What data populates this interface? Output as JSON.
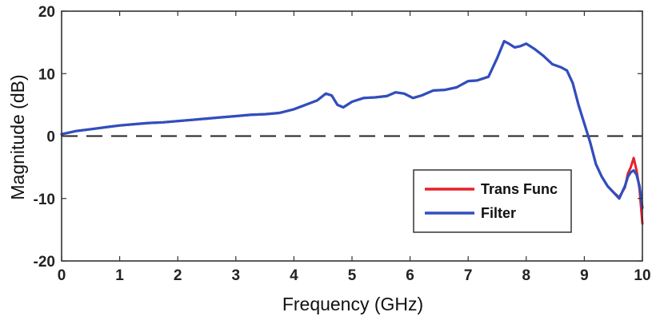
{
  "chart_data": {
    "type": "line",
    "xlabel": "Frequency (GHz)",
    "ylabel": "Magnitude (dB)",
    "xlim": [
      0,
      10
    ],
    "ylim": [
      -20,
      20
    ],
    "xticks": [
      "0",
      "1",
      "2",
      "3",
      "4",
      "5",
      "6",
      "7",
      "8",
      "9",
      "10"
    ],
    "yticks": [
      "20",
      "10",
      "0",
      "-10",
      "-20"
    ],
    "grid": false,
    "legend_position": "lower-right",
    "reference_line": {
      "y": 0,
      "style": "dashed"
    },
    "series": [
      {
        "name": "Trans Func",
        "color": "#e8202a",
        "x": [
          0,
          0.25,
          0.5,
          0.75,
          1,
          1.25,
          1.5,
          1.75,
          2,
          2.25,
          2.5,
          2.75,
          3,
          3.25,
          3.5,
          3.75,
          4,
          4.2,
          4.4,
          4.55,
          4.65,
          4.75,
          4.85,
          5,
          5.2,
          5.4,
          5.6,
          5.75,
          5.9,
          6.05,
          6.2,
          6.4,
          6.6,
          6.8,
          7,
          7.15,
          7.35,
          7.5,
          7.62,
          7.7,
          7.8,
          7.9,
          8,
          8.15,
          8.3,
          8.45,
          8.6,
          8.7,
          8.8,
          8.9,
          9,
          9.1,
          9.2,
          9.3,
          9.4,
          9.5,
          9.6,
          9.7,
          9.75,
          9.8,
          9.85,
          9.9,
          9.95,
          10
        ],
        "y": [
          0.3,
          0.8,
          1.1,
          1.4,
          1.7,
          1.9,
          2.1,
          2.2,
          2.4,
          2.6,
          2.8,
          3.0,
          3.2,
          3.4,
          3.5,
          3.7,
          4.3,
          5.0,
          5.7,
          6.8,
          6.5,
          5.0,
          4.6,
          5.5,
          6.1,
          6.2,
          6.4,
          7.0,
          6.8,
          6.1,
          6.5,
          7.3,
          7.4,
          7.8,
          8.8,
          8.9,
          9.5,
          12.5,
          15.2,
          14.8,
          14.2,
          14.4,
          14.8,
          13.9,
          12.8,
          11.5,
          11.0,
          10.5,
          8.5,
          5.0,
          2.0,
          -1.0,
          -4.5,
          -6.5,
          -8.0,
          -9.0,
          -9.8,
          -8.2,
          -6.0,
          -5.0,
          -3.5,
          -5.5,
          -8.5,
          -14.0
        ]
      },
      {
        "name": "Filter",
        "color": "#2f4fc0",
        "x": [
          0,
          0.25,
          0.5,
          0.75,
          1,
          1.25,
          1.5,
          1.75,
          2,
          2.25,
          2.5,
          2.75,
          3,
          3.25,
          3.5,
          3.75,
          4,
          4.2,
          4.4,
          4.55,
          4.65,
          4.75,
          4.85,
          5,
          5.2,
          5.4,
          5.6,
          5.75,
          5.9,
          6.05,
          6.2,
          6.4,
          6.6,
          6.8,
          7,
          7.15,
          7.35,
          7.5,
          7.62,
          7.7,
          7.8,
          7.9,
          8,
          8.15,
          8.3,
          8.45,
          8.6,
          8.7,
          8.8,
          8.9,
          9,
          9.1,
          9.2,
          9.3,
          9.4,
          9.5,
          9.6,
          9.7,
          9.75,
          9.8,
          9.85,
          9.9,
          9.95,
          10
        ],
        "y": [
          0.3,
          0.8,
          1.1,
          1.4,
          1.7,
          1.9,
          2.1,
          2.2,
          2.4,
          2.6,
          2.8,
          3.0,
          3.2,
          3.4,
          3.5,
          3.7,
          4.3,
          5.0,
          5.7,
          6.8,
          6.5,
          5.0,
          4.6,
          5.5,
          6.1,
          6.2,
          6.4,
          7.0,
          6.8,
          6.1,
          6.5,
          7.3,
          7.4,
          7.8,
          8.8,
          8.9,
          9.5,
          12.5,
          15.2,
          14.8,
          14.2,
          14.4,
          14.8,
          13.9,
          12.8,
          11.5,
          11.0,
          10.5,
          8.5,
          5.0,
          2.0,
          -1.0,
          -4.5,
          -6.5,
          -8.0,
          -9.0,
          -10.0,
          -8.0,
          -6.5,
          -5.8,
          -5.5,
          -6.2,
          -8.0,
          -11.5
        ]
      }
    ]
  }
}
